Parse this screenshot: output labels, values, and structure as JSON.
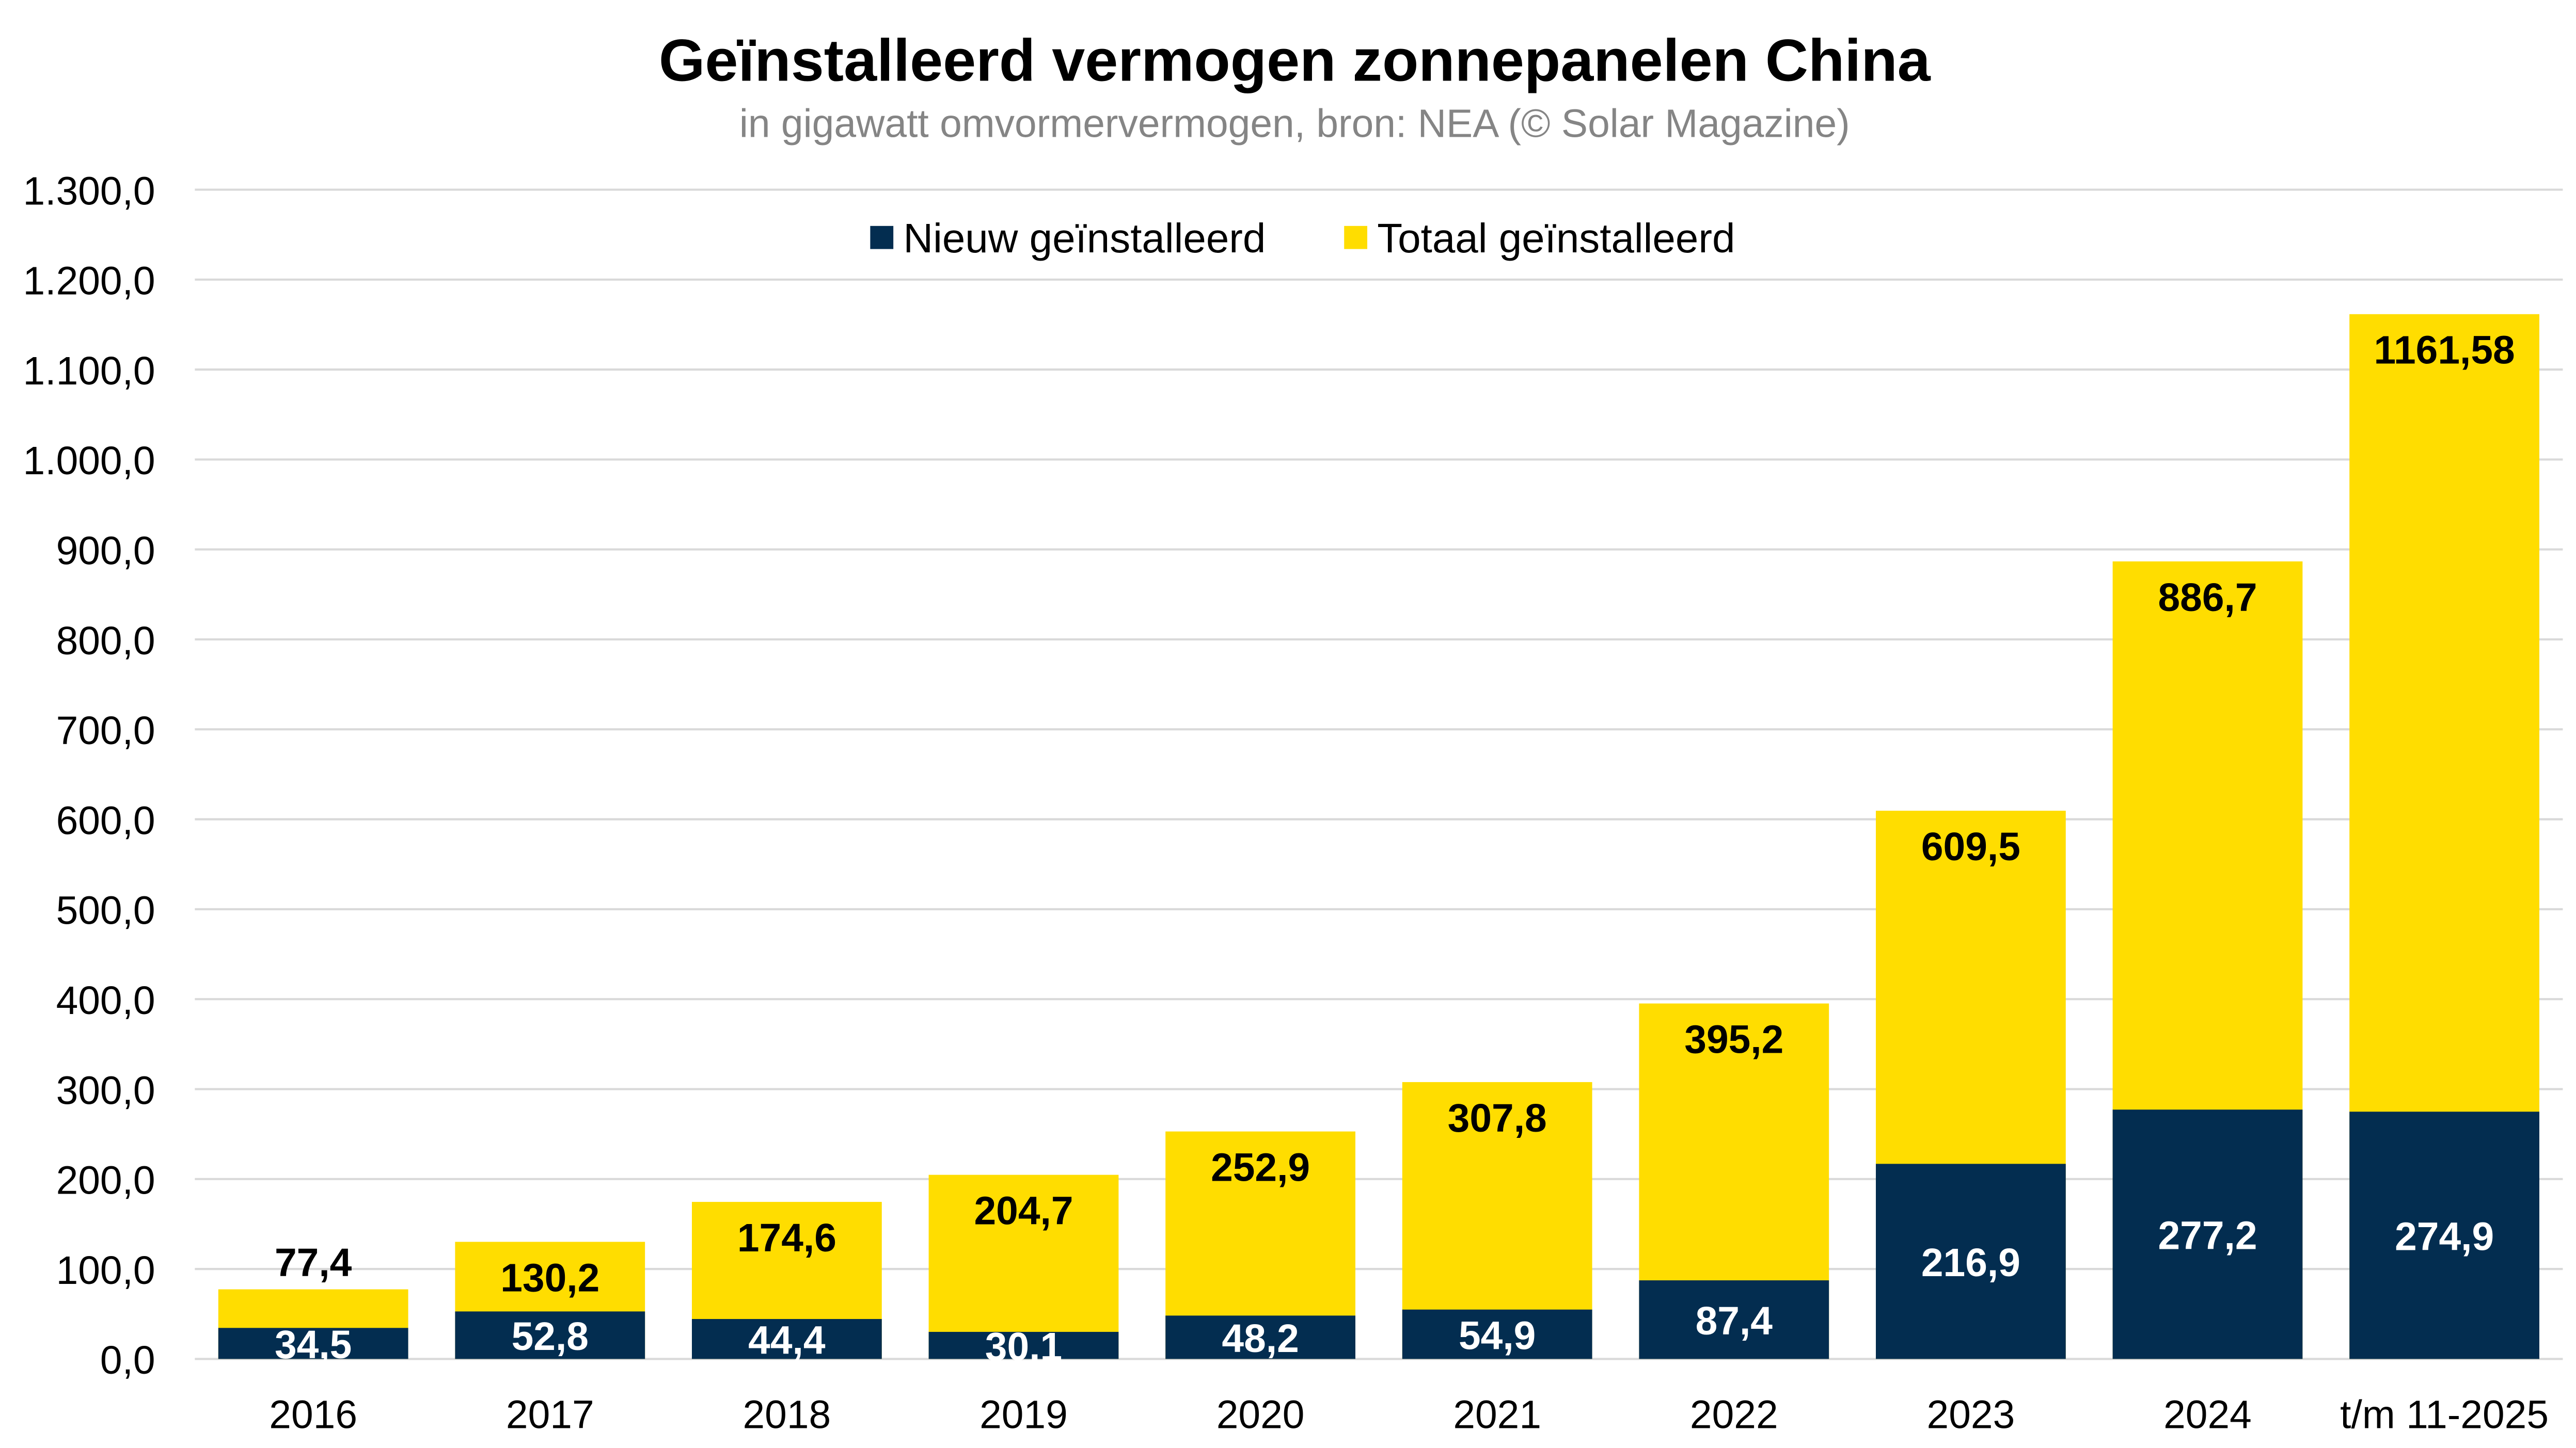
{
  "chart_data": {
    "type": "bar",
    "title": "Geïnstalleerd vermogen zonnepanelen China",
    "subtitle": "in gigawatt omvormervermogen, bron: NEA (© Solar Magazine)",
    "xlabel": "",
    "ylabel": "",
    "ylim": [
      0,
      1300
    ],
    "yticks": [
      0,
      100,
      200,
      300,
      400,
      500,
      600,
      700,
      800,
      900,
      1000,
      1100,
      1200,
      1300
    ],
    "ytick_labels": [
      "0,0",
      "100,0",
      "200,0",
      "300,0",
      "400,0",
      "500,0",
      "600,0",
      "700,0",
      "800,0",
      "900,0",
      "1.000,0",
      "1.100,0",
      "1.200,0",
      "1.300,0"
    ],
    "grid": true,
    "legend_position": "top-center",
    "categories": [
      "2016",
      "2017",
      "2018",
      "2019",
      "2020",
      "2021",
      "2022",
      "2023",
      "2024",
      "t/m 11-2025"
    ],
    "series": [
      {
        "name": "Nieuw geïnstalleerd",
        "color": "#032d50",
        "values": [
          34.5,
          52.8,
          44.4,
          30.1,
          48.2,
          54.9,
          87.4,
          216.9,
          277.2,
          274.9
        ],
        "labels": [
          "34,5",
          "52,8",
          "44,4",
          "30,1",
          "48,2",
          "54,9",
          "87,4",
          "216,9",
          "277,2",
          "274,9"
        ]
      },
      {
        "name": "Totaal geïnstalleerd",
        "color": "#ffdd00",
        "values": [
          77.4,
          130.2,
          174.6,
          204.7,
          252.9,
          307.8,
          395.2,
          609.5,
          886.7,
          1161.58
        ],
        "labels": [
          "77,4",
          "130,2",
          "174,6",
          "204,7",
          "252,9",
          "307,8",
          "395,2",
          "609,5",
          "886,7",
          "1161,58"
        ]
      }
    ]
  }
}
